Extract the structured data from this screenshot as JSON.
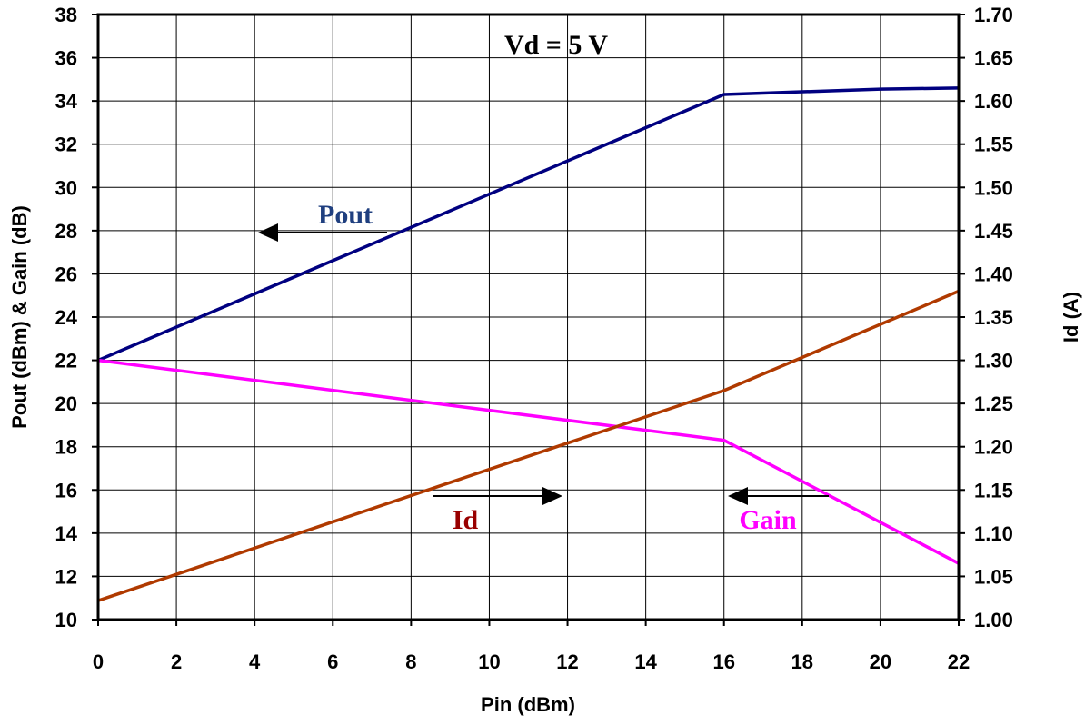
{
  "chart_data": {
    "type": "line",
    "title": "",
    "xlabel": "Pin (dBm)",
    "ylabel_left": "Pout (dBm) & Gain (dB)",
    "ylabel_right": "Id  (A)",
    "xlim": [
      0,
      22
    ],
    "ylim_left": [
      10,
      38
    ],
    "ylim_right": [
      1.0,
      1.7
    ],
    "grid": true,
    "x_ticks": [
      "0",
      "2",
      "4",
      "6",
      "8",
      "10",
      "12",
      "14",
      "16",
      "18",
      "20",
      "22"
    ],
    "y_left_ticks": [
      "10",
      "12",
      "14",
      "16",
      "18",
      "20",
      "22",
      "24",
      "26",
      "28",
      "30",
      "32",
      "34",
      "36",
      "38"
    ],
    "y_right_ticks": [
      "1.00",
      "1.05",
      "1.10",
      "1.15",
      "1.20",
      "1.25",
      "1.30",
      "1.35",
      "1.40",
      "1.45",
      "1.50",
      "1.55",
      "1.60",
      "1.65",
      "1.70"
    ],
    "series": [
      {
        "name": "Pout",
        "axis": "left",
        "color": "#000080",
        "points": [
          [
            0,
            22.0
          ],
          [
            16,
            34.3
          ],
          [
            20,
            34.55
          ],
          [
            22,
            34.6
          ]
        ]
      },
      {
        "name": "Gain",
        "axis": "left",
        "color": "#FF00FF",
        "points": [
          [
            0,
            22.0
          ],
          [
            16,
            18.3
          ],
          [
            22,
            12.6
          ]
        ]
      },
      {
        "name": "Id",
        "axis": "right",
        "color": "#B03A00",
        "points": [
          [
            0,
            1.022
          ],
          [
            16,
            1.265
          ],
          [
            22,
            1.38
          ]
        ]
      }
    ],
    "annotations": [
      {
        "text": "Vd = 5 V",
        "color": "#000000"
      },
      {
        "text": "Pout",
        "color": "#1F3F7F",
        "arrow": "left"
      },
      {
        "text": "Id",
        "color": "#990000",
        "arrow": "right"
      },
      {
        "text": "Gain",
        "color": "#FF00FF",
        "arrow": "left"
      }
    ]
  }
}
